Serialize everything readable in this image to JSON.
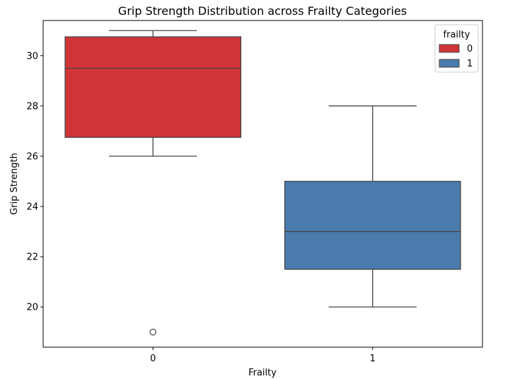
{
  "chart_data": {
    "type": "box",
    "title": "Grip Strength Distribution across Frailty Categories",
    "xlabel": "Frailty",
    "ylabel": "Grip Strength",
    "categories": [
      "0",
      "1"
    ],
    "ylim": [
      18.4,
      31.4
    ],
    "yticks": [
      20,
      22,
      24,
      26,
      28,
      30
    ],
    "grid": false,
    "legend": {
      "title": "frailty",
      "position": "top-right",
      "entries": [
        "0",
        "1"
      ]
    },
    "series": [
      {
        "name": "0",
        "color": "#d13438",
        "whisker_low": 26,
        "q1": 26.75,
        "median": 29.5,
        "q3": 30.75,
        "whisker_high": 31,
        "outliers": [
          19
        ]
      },
      {
        "name": "1",
        "color": "#4a7bac",
        "whisker_low": 20,
        "q1": 21.5,
        "median": 23,
        "q3": 25,
        "whisker_high": 28,
        "outliers": []
      }
    ]
  }
}
